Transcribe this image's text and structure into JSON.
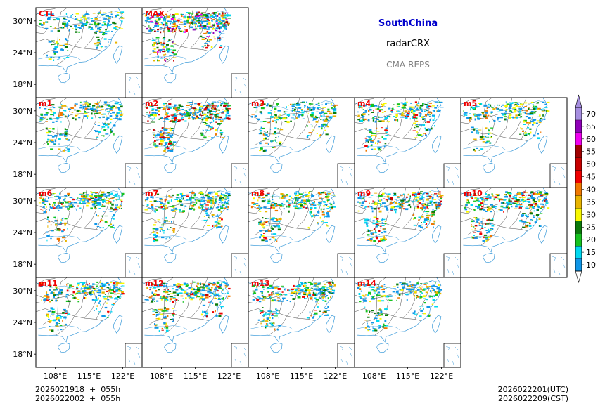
{
  "figure": {
    "region_title": "SouthChina",
    "variable": "radarCRX",
    "source": "CMA-REPS",
    "init_time_utc": "2026021918",
    "init_time_cst": "2026022002",
    "lead_utc": "055h",
    "lead_cst": "055h",
    "plus_sign": "+",
    "valid_time_utc": "2026022201(UTC)",
    "valid_time_cst": "2026022209(CST)"
  },
  "map_axes": {
    "lat_ticks": [
      "30°N",
      "24°N",
      "18°N"
    ],
    "lon_ticks": [
      "108°E",
      "115°E",
      "122°E"
    ],
    "lat_values": [
      30,
      24,
      18
    ],
    "lon_values": [
      108,
      115,
      122
    ],
    "extent": {
      "lon_min": 104,
      "lon_max": 126,
      "lat_min": 15.5,
      "lat_max": 32.5
    }
  },
  "panels": [
    {
      "label": "CTL",
      "intensity": 0.3
    },
    {
      "label": "MAX",
      "intensity": 1.0
    },
    {
      "label": "m1",
      "intensity": 0.4
    },
    {
      "label": "m2",
      "intensity": 0.75
    },
    {
      "label": "m3",
      "intensity": 0.35
    },
    {
      "label": "m4",
      "intensity": 0.45
    },
    {
      "label": "m5",
      "intensity": 0.4
    },
    {
      "label": "m6",
      "intensity": 0.5
    },
    {
      "label": "m7",
      "intensity": 0.55
    },
    {
      "label": "m8",
      "intensity": 0.5
    },
    {
      "label": "m9",
      "intensity": 0.6
    },
    {
      "label": "m10",
      "intensity": 0.6
    },
    {
      "label": "m11",
      "intensity": 0.45
    },
    {
      "label": "m12",
      "intensity": 0.6
    },
    {
      "label": "m13",
      "intensity": 0.55
    },
    {
      "label": "m14",
      "intensity": 0.35
    }
  ],
  "colorbar": {
    "levels": [
      "10",
      "15",
      "20",
      "25",
      "30",
      "35",
      "40",
      "45",
      "50",
      "55",
      "60",
      "65",
      "70"
    ],
    "colors": [
      "#0f96e8",
      "#00d8f0",
      "#16c21f",
      "#0a7a0a",
      "#f8f800",
      "#e8b400",
      "#f07800",
      "#f00000",
      "#c80000",
      "#a00000",
      "#f000f0",
      "#9000b8",
      "#a68ee0"
    ],
    "under_color": "#ffffff",
    "over_color": "#a68ee0"
  },
  "colors": {
    "label_red": "#ee0000",
    "title_blue": "#0000cc",
    "coast": "#3a9ad9",
    "border": "#333333"
  }
}
